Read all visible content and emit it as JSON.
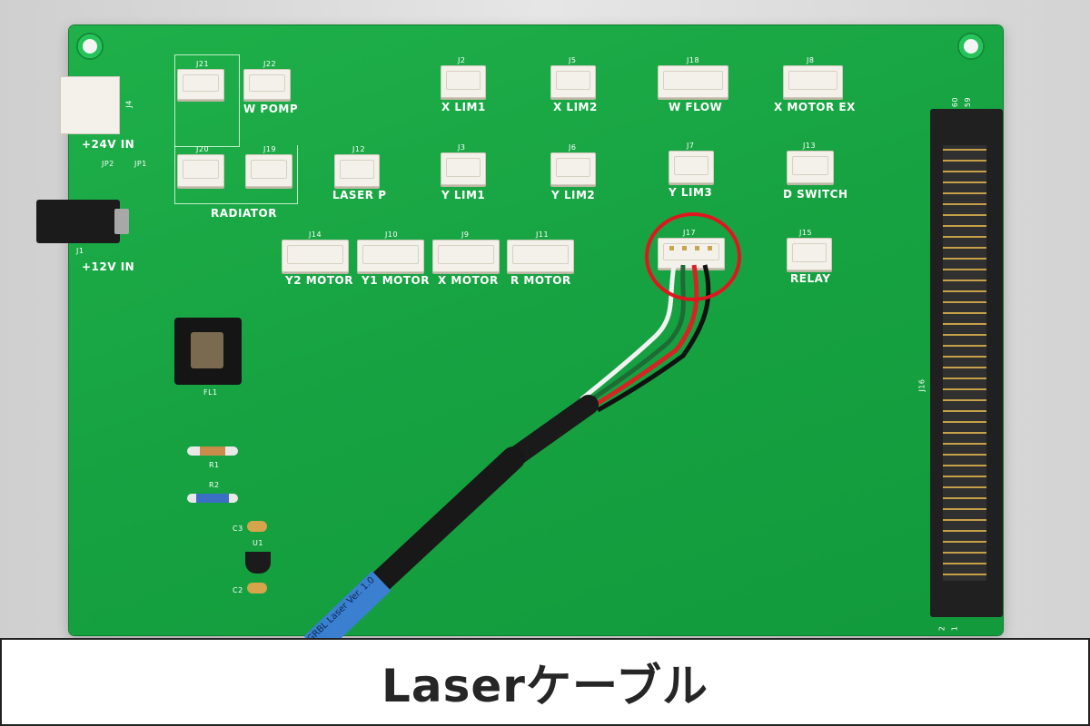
{
  "caption": "Laserケーブル",
  "colors": {
    "board": "#17a342",
    "silkscreen": "#ffffff",
    "highlight": "#e0161e",
    "cable": "#3b7fd0"
  },
  "board": {
    "power_labels": {
      "v24": "+24V IN",
      "v12": "+12V IN",
      "j4": "J4",
      "j1": "J1",
      "jp1": "JP1",
      "jp2": "JP2"
    },
    "radiator_label": "RADIATOR",
    "filter_label": "FL1",
    "resistors": {
      "r1": "R1",
      "r2": "R2"
    },
    "caps": {
      "c3": "C3",
      "c2": "C2"
    },
    "u1": "U1",
    "j16": "J16",
    "header_pins": {
      "p60": "60",
      "p59": "59",
      "p2": "2",
      "p1": "1"
    },
    "cable_print": "GRBL Laser Ver. 1.0",
    "connectors": [
      {
        "ref": "J21",
        "label": ""
      },
      {
        "ref": "J22",
        "label": "W POMP"
      },
      {
        "ref": "J20",
        "label": ""
      },
      {
        "ref": "J19",
        "label": ""
      },
      {
        "ref": "J2",
        "label": "X LIM1"
      },
      {
        "ref": "J5",
        "label": "X LIM2"
      },
      {
        "ref": "J18",
        "label": "W FLOW"
      },
      {
        "ref": "J8",
        "label": "X MOTOR EX"
      },
      {
        "ref": "J12",
        "label": "LASER P"
      },
      {
        "ref": "J3",
        "label": "Y LIM1"
      },
      {
        "ref": "J6",
        "label": "Y LIM2"
      },
      {
        "ref": "J7",
        "label": "Y LIM3"
      },
      {
        "ref": "J13",
        "label": "D SWITCH"
      },
      {
        "ref": "J14",
        "label": "Y2 MOTOR"
      },
      {
        "ref": "J10",
        "label": "Y1 MOTOR"
      },
      {
        "ref": "J9",
        "label": "X MOTOR"
      },
      {
        "ref": "J11",
        "label": "R MOTOR"
      },
      {
        "ref": "J17",
        "label": ""
      },
      {
        "ref": "J15",
        "label": "RELAY"
      }
    ]
  }
}
